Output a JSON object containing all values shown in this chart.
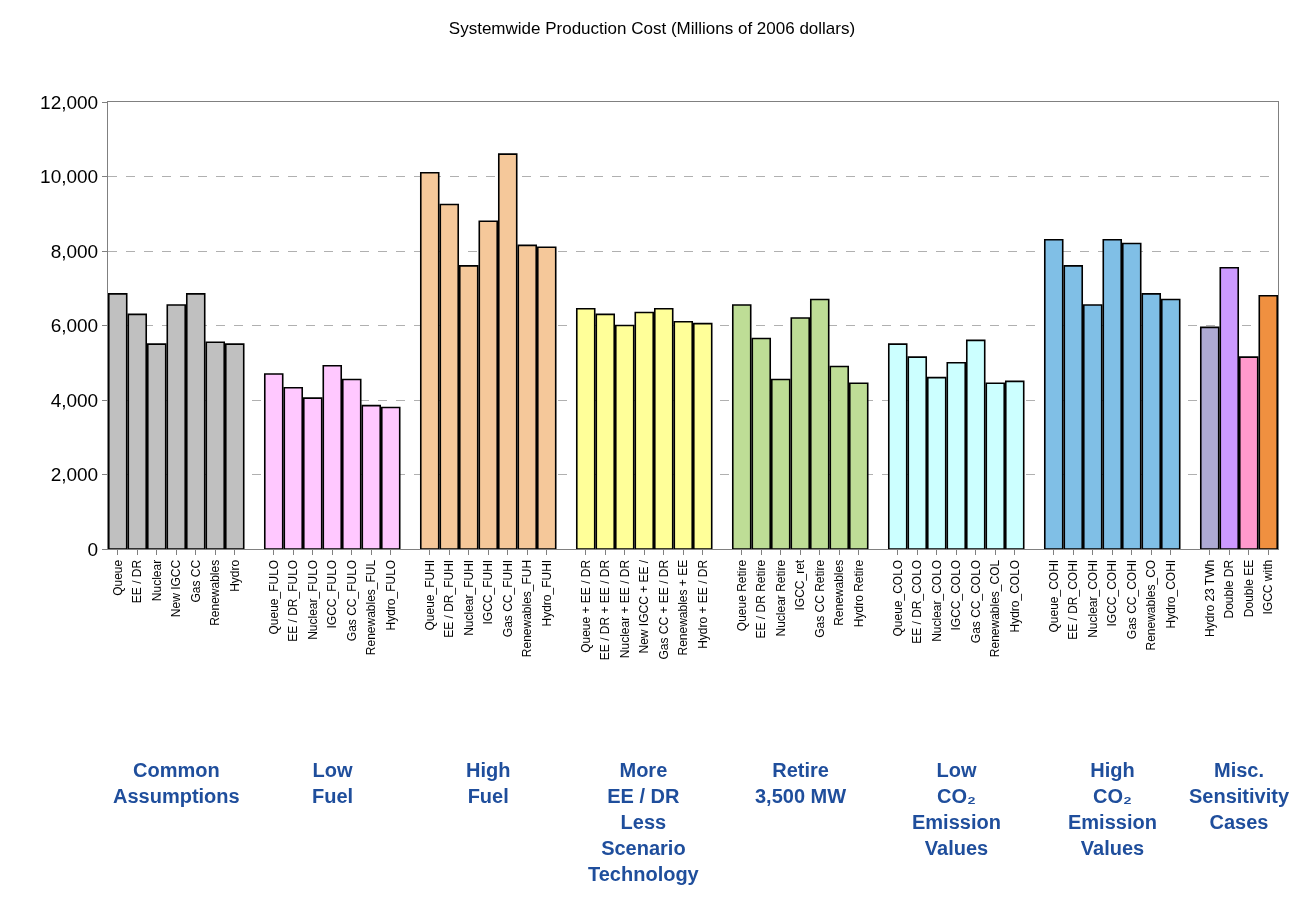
{
  "chart_data": {
    "type": "bar",
    "title": "Systemwide Production Cost (Millions of 2006 dollars)",
    "categories": [
      "Queue",
      "EE / DR",
      "Nuclear",
      "New IGCC",
      "Gas CC",
      "Renewables",
      "Hydro",
      null,
      "Queue_FULO",
      "EE / DR_FULO",
      "Nuclear_FULO",
      "IGCC_FULO",
      "Gas CC_FULO",
      "Renewables_FUL",
      "Hydro_FULO",
      null,
      "Queue_FUHI",
      "EE / DR_FUHI",
      "Nuclear_FUHI",
      "IGCC_FUHI",
      "Gas CC_FUHI",
      "Renewables_FUH",
      "Hydro_FUHI",
      null,
      "Queue + EE / DR",
      "EE / DR + EE / DR",
      "Nuclear + EE / DR",
      "New IGCC + EE /",
      "Gas CC + EE / DR",
      "Renewables + EE",
      "Hydro + EE / DR",
      null,
      "Queue Retire",
      "EE / DR Retire",
      "Nuclear Retire",
      "IGCC_ret",
      "Gas CC Retire",
      "Renewables",
      "Hydro Retire",
      null,
      "Queue_COLO",
      "EE / DR_COLO",
      "Nuclear_COLO",
      "IGCC_COLO",
      "Gas CC_COLO",
      "Renewables_COL",
      "Hydro_COLO",
      null,
      "Queue_COHI",
      "EE / DR_COHI",
      "Nuclear_COHI",
      "IGCC_COHI",
      "Gas CC_COHI",
      "Renewables_CO",
      "Hydro_COHI",
      null,
      "Hydro 23 TWh",
      "Double DR",
      "Double EE",
      "IGCC with"
    ],
    "values": [
      6850,
      6300,
      5500,
      6550,
      6850,
      5550,
      5500,
      null,
      4700,
      4330,
      4050,
      4920,
      4550,
      3850,
      3800,
      null,
      10100,
      9250,
      7600,
      8800,
      10600,
      8150,
      8100,
      null,
      6450,
      6300,
      6000,
      6350,
      6450,
      6100,
      6050,
      null,
      6550,
      5650,
      4550,
      6200,
      6700,
      4900,
      4450,
      null,
      5500,
      5150,
      4600,
      5000,
      5600,
      4450,
      4500,
      null,
      8300,
      7600,
      6550,
      8300,
      8200,
      6850,
      6700,
      null,
      5950,
      7550,
      5150,
      6800
    ],
    "colors": [
      "#c0c0c0",
      "#c0c0c0",
      "#c0c0c0",
      "#c0c0c0",
      "#c0c0c0",
      "#c0c0c0",
      "#c0c0c0",
      null,
      "#ffc8ff",
      "#ffc8ff",
      "#ffc8ff",
      "#ffc8ff",
      "#ffc8ff",
      "#ffc8ff",
      "#ffc8ff",
      null,
      "#f5c89a",
      "#f5c89a",
      "#f5c89a",
      "#f5c89a",
      "#f5c89a",
      "#f5c89a",
      "#f5c89a",
      null,
      "#ffff99",
      "#ffff99",
      "#ffff99",
      "#ffff99",
      "#ffff99",
      "#ffff99",
      "#ffff99",
      null,
      "#bedd96",
      "#bedd96",
      "#bedd96",
      "#bedd96",
      "#bedd96",
      "#bedd96",
      "#bedd96",
      null,
      "#ccffff",
      "#ccffff",
      "#ccffff",
      "#ccffff",
      "#ccffff",
      "#ccffff",
      "#ccffff",
      null,
      "#80bfe6",
      "#80bfe6",
      "#80bfe6",
      "#80bfe6",
      "#80bfe6",
      "#80bfe6",
      "#80bfe6",
      null,
      "#aeaad4",
      "#cc99ff",
      "#ff99cc",
      "#f09040"
    ],
    "ylim": [
      0,
      12000
    ],
    "yticks": [
      0,
      {
        "value": 2000,
        "label": "2,000"
      },
      {
        "value": 4000,
        "label": "4,000"
      },
      {
        "value": 6000,
        "label": "6,000"
      },
      {
        "value": 8000,
        "label": "8,000"
      },
      {
        "value": 10000,
        "label": "10,000"
      },
      {
        "value": 12000,
        "label": "12,000"
      }
    ],
    "grid": "y",
    "annotations": [
      "Common\nAssumptions",
      "Low\nFuel",
      "High\nFuel",
      "More\nEE / DR\nLess\nScenario\nTechnology",
      "Retire\n3,500 MW",
      "Low\nCO₂\nEmission\nValues",
      "High\nCO₂\nEmission\nValues",
      "Misc.\nSensitivity\nCases"
    ]
  }
}
